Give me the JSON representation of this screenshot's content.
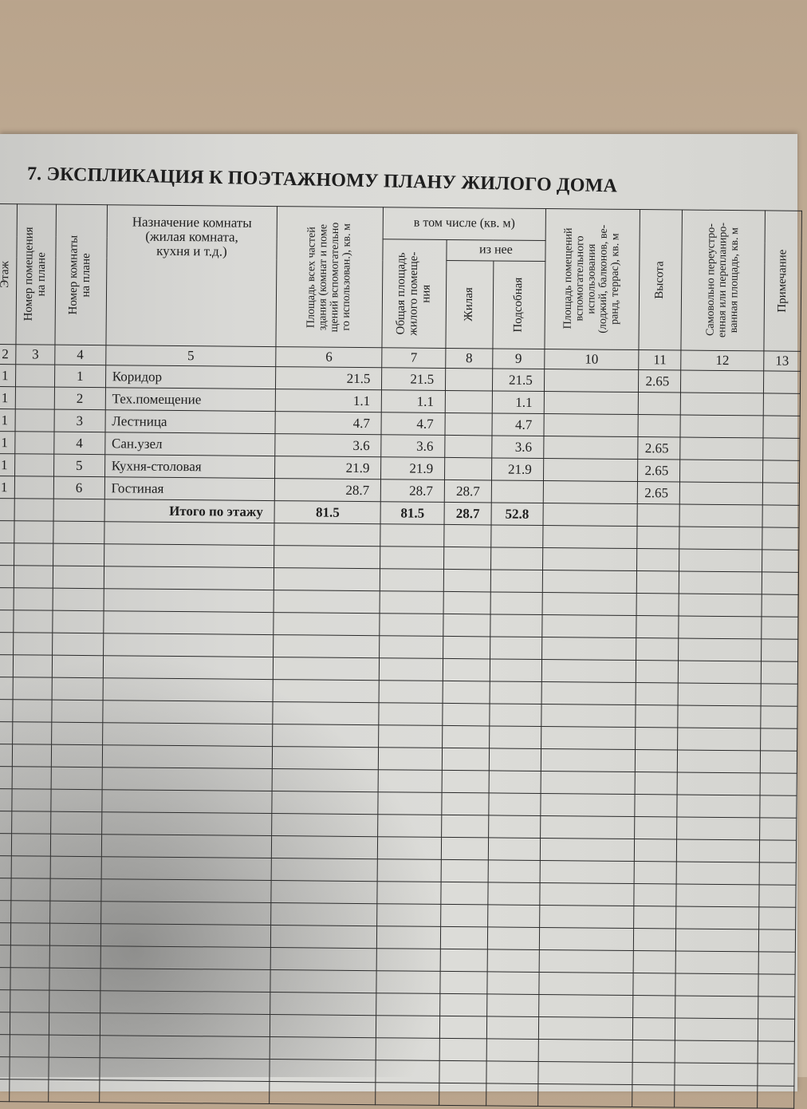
{
  "title": "7. ЭКСПЛИКАЦИЯ К ПОЭТАЖНОМУ ПЛАНУ ЖИЛОГО ДОМА",
  "headers": {
    "floor": "Этаж",
    "premise_no": "Номер помещения\nна плане",
    "room_no": "Номер комнаты\nна плане",
    "purpose": "Назначение комнаты\n(жилая комната,\nкухня и т.д.)",
    "area_all": "Площадь всех частей\nздания (комнат и поме\nщений вспомогательно\nго использован.), кв. м",
    "including": "в том числе (кв. м)",
    "total_living": "Общая площадь\nжилого помеще-\nния",
    "of_which": "из нее",
    "living": "Жилая",
    "auxiliary": "Подсобная",
    "aux_use": "Площадь помещений\nвспомогательного\nиспользования\n(лоджий, балконов, ве-\nранд, террас), кв. м",
    "height": "Высота",
    "unauthorized": "Самовольно переустро-\nенная или перепланиро-\nванная площадь, кв. м",
    "note": "Примечание"
  },
  "column_numbers": [
    "2",
    "3",
    "4",
    "5",
    "6",
    "7",
    "8",
    "9",
    "10",
    "11",
    "12",
    "13"
  ],
  "rows": [
    {
      "floor": "1",
      "premise": "",
      "room": "1",
      "name": "Коридор",
      "area_all": "21.5",
      "total": "21.5",
      "living": "",
      "aux": "21.5",
      "aux_use": "",
      "height": "2.65",
      "unauth": "",
      "note": ""
    },
    {
      "floor": "1",
      "premise": "",
      "room": "2",
      "name": "Тех.помещение",
      "area_all": "1.1",
      "total": "1.1",
      "living": "",
      "aux": "1.1",
      "aux_use": "",
      "height": "",
      "unauth": "",
      "note": ""
    },
    {
      "floor": "1",
      "premise": "",
      "room": "3",
      "name": "Лестница",
      "area_all": "4.7",
      "total": "4.7",
      "living": "",
      "aux": "4.7",
      "aux_use": "",
      "height": "",
      "unauth": "",
      "note": ""
    },
    {
      "floor": "1",
      "premise": "",
      "room": "4",
      "name": "Сан.узел",
      "area_all": "3.6",
      "total": "3.6",
      "living": "",
      "aux": "3.6",
      "aux_use": "",
      "height": "2.65",
      "unauth": "",
      "note": ""
    },
    {
      "floor": "1",
      "premise": "",
      "room": "5",
      "name": "Кухня-столовая",
      "area_all": "21.9",
      "total": "21.9",
      "living": "",
      "aux": "21.9",
      "aux_use": "",
      "height": "2.65",
      "unauth": "",
      "note": ""
    },
    {
      "floor": "1",
      "premise": "",
      "room": "6",
      "name": "Гостиная",
      "area_all": "28.7",
      "total": "28.7",
      "living": "28.7",
      "aux": "",
      "aux_use": "",
      "height": "2.65",
      "unauth": "",
      "note": ""
    }
  ],
  "total": {
    "label": "Итого по этажу",
    "area_all": "81.5",
    "total": "81.5",
    "living": "28.7",
    "aux": "52.8"
  }
}
